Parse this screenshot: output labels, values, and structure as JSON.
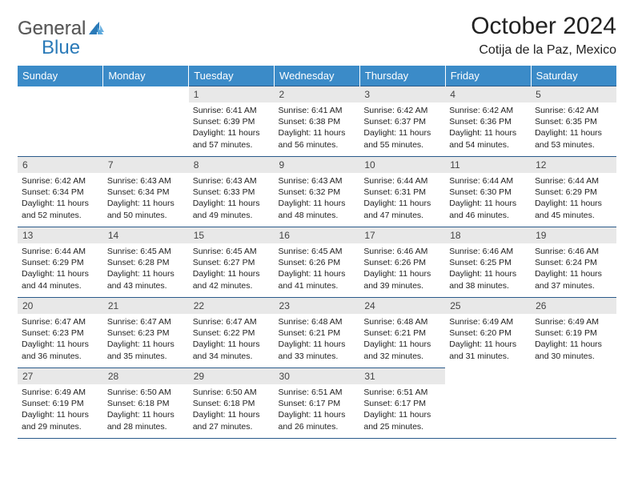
{
  "logo": {
    "text_gray": "General",
    "text_blue": "Blue"
  },
  "title": "October 2024",
  "location": "Cotija de la Paz, Mexico",
  "day_headers": [
    "Sunday",
    "Monday",
    "Tuesday",
    "Wednesday",
    "Thursday",
    "Friday",
    "Saturday"
  ],
  "colors": {
    "header_bg": "#3b8bc8",
    "header_text": "#ffffff",
    "daynum_bg": "#e8e8e8",
    "border": "#2a5a8a",
    "logo_gray": "#5a5a5a",
    "logo_blue": "#2a7ab8"
  },
  "weeks": [
    [
      {
        "empty": true
      },
      {
        "empty": true
      },
      {
        "num": "1",
        "sunrise": "6:41 AM",
        "sunset": "6:39 PM",
        "daylight": "11 hours and 57 minutes."
      },
      {
        "num": "2",
        "sunrise": "6:41 AM",
        "sunset": "6:38 PM",
        "daylight": "11 hours and 56 minutes."
      },
      {
        "num": "3",
        "sunrise": "6:42 AM",
        "sunset": "6:37 PM",
        "daylight": "11 hours and 55 minutes."
      },
      {
        "num": "4",
        "sunrise": "6:42 AM",
        "sunset": "6:36 PM",
        "daylight": "11 hours and 54 minutes."
      },
      {
        "num": "5",
        "sunrise": "6:42 AM",
        "sunset": "6:35 PM",
        "daylight": "11 hours and 53 minutes."
      }
    ],
    [
      {
        "num": "6",
        "sunrise": "6:42 AM",
        "sunset": "6:34 PM",
        "daylight": "11 hours and 52 minutes."
      },
      {
        "num": "7",
        "sunrise": "6:43 AM",
        "sunset": "6:34 PM",
        "daylight": "11 hours and 50 minutes."
      },
      {
        "num": "8",
        "sunrise": "6:43 AM",
        "sunset": "6:33 PM",
        "daylight": "11 hours and 49 minutes."
      },
      {
        "num": "9",
        "sunrise": "6:43 AM",
        "sunset": "6:32 PM",
        "daylight": "11 hours and 48 minutes."
      },
      {
        "num": "10",
        "sunrise": "6:44 AM",
        "sunset": "6:31 PM",
        "daylight": "11 hours and 47 minutes."
      },
      {
        "num": "11",
        "sunrise": "6:44 AM",
        "sunset": "6:30 PM",
        "daylight": "11 hours and 46 minutes."
      },
      {
        "num": "12",
        "sunrise": "6:44 AM",
        "sunset": "6:29 PM",
        "daylight": "11 hours and 45 minutes."
      }
    ],
    [
      {
        "num": "13",
        "sunrise": "6:44 AM",
        "sunset": "6:29 PM",
        "daylight": "11 hours and 44 minutes."
      },
      {
        "num": "14",
        "sunrise": "6:45 AM",
        "sunset": "6:28 PM",
        "daylight": "11 hours and 43 minutes."
      },
      {
        "num": "15",
        "sunrise": "6:45 AM",
        "sunset": "6:27 PM",
        "daylight": "11 hours and 42 minutes."
      },
      {
        "num": "16",
        "sunrise": "6:45 AM",
        "sunset": "6:26 PM",
        "daylight": "11 hours and 41 minutes."
      },
      {
        "num": "17",
        "sunrise": "6:46 AM",
        "sunset": "6:26 PM",
        "daylight": "11 hours and 39 minutes."
      },
      {
        "num": "18",
        "sunrise": "6:46 AM",
        "sunset": "6:25 PM",
        "daylight": "11 hours and 38 minutes."
      },
      {
        "num": "19",
        "sunrise": "6:46 AM",
        "sunset": "6:24 PM",
        "daylight": "11 hours and 37 minutes."
      }
    ],
    [
      {
        "num": "20",
        "sunrise": "6:47 AM",
        "sunset": "6:23 PM",
        "daylight": "11 hours and 36 minutes."
      },
      {
        "num": "21",
        "sunrise": "6:47 AM",
        "sunset": "6:23 PM",
        "daylight": "11 hours and 35 minutes."
      },
      {
        "num": "22",
        "sunrise": "6:47 AM",
        "sunset": "6:22 PM",
        "daylight": "11 hours and 34 minutes."
      },
      {
        "num": "23",
        "sunrise": "6:48 AM",
        "sunset": "6:21 PM",
        "daylight": "11 hours and 33 minutes."
      },
      {
        "num": "24",
        "sunrise": "6:48 AM",
        "sunset": "6:21 PM",
        "daylight": "11 hours and 32 minutes."
      },
      {
        "num": "25",
        "sunrise": "6:49 AM",
        "sunset": "6:20 PM",
        "daylight": "11 hours and 31 minutes."
      },
      {
        "num": "26",
        "sunrise": "6:49 AM",
        "sunset": "6:19 PM",
        "daylight": "11 hours and 30 minutes."
      }
    ],
    [
      {
        "num": "27",
        "sunrise": "6:49 AM",
        "sunset": "6:19 PM",
        "daylight": "11 hours and 29 minutes."
      },
      {
        "num": "28",
        "sunrise": "6:50 AM",
        "sunset": "6:18 PM",
        "daylight": "11 hours and 28 minutes."
      },
      {
        "num": "29",
        "sunrise": "6:50 AM",
        "sunset": "6:18 PM",
        "daylight": "11 hours and 27 minutes."
      },
      {
        "num": "30",
        "sunrise": "6:51 AM",
        "sunset": "6:17 PM",
        "daylight": "11 hours and 26 minutes."
      },
      {
        "num": "31",
        "sunrise": "6:51 AM",
        "sunset": "6:17 PM",
        "daylight": "11 hours and 25 minutes."
      },
      {
        "empty": true
      },
      {
        "empty": true
      }
    ]
  ],
  "labels": {
    "sunrise": "Sunrise:",
    "sunset": "Sunset:",
    "daylight": "Daylight:"
  }
}
